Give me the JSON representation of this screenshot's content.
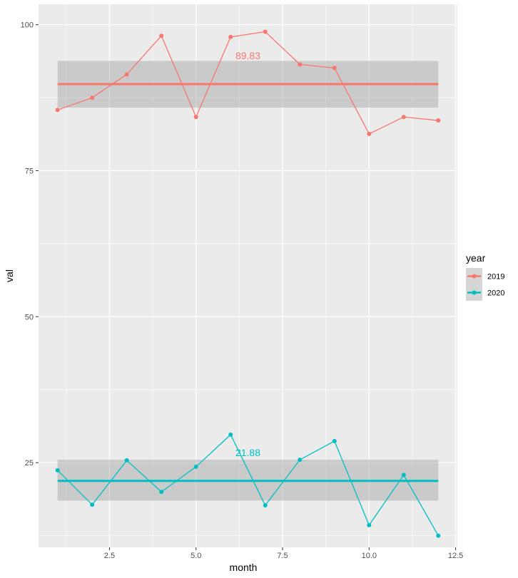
{
  "chart_data": {
    "type": "line",
    "xlabel": "month",
    "ylabel": "val",
    "xlim": [
      0.45,
      12.55
    ],
    "ylim": [
      10.5,
      103.5
    ],
    "x_ticks": [
      2.5,
      5.0,
      7.5,
      10.0,
      12.5
    ],
    "x_tick_labels": [
      "2.5",
      "5.0",
      "7.5",
      "10.0",
      "12.5"
    ],
    "y_ticks": [
      25,
      50,
      75,
      100
    ],
    "y_tick_labels": [
      "25",
      "50",
      "75",
      "100"
    ],
    "grid": true,
    "legend": {
      "title": "year",
      "position": "right"
    },
    "series": [
      {
        "name": "2019",
        "color": "#F8766D",
        "x": [
          1,
          2,
          3,
          4,
          5,
          6,
          7,
          8,
          9,
          10,
          11,
          12
        ],
        "values": [
          85.4,
          87.5,
          91.5,
          98.1,
          84.2,
          97.9,
          98.8,
          93.2,
          92.6,
          81.3,
          84.2,
          83.6
        ],
        "mean": 89.83,
        "mean_label": "89.83",
        "band": [
          85.8,
          93.8
        ]
      },
      {
        "name": "2020",
        "color": "#00BFC4",
        "x": [
          1,
          2,
          3,
          4,
          5,
          6,
          7,
          8,
          9,
          10,
          11,
          12
        ],
        "values": [
          23.7,
          17.8,
          25.4,
          20.0,
          24.3,
          29.8,
          17.7,
          25.5,
          28.7,
          14.3,
          22.9,
          12.5
        ],
        "mean": 21.88,
        "mean_label": "21.88",
        "band": [
          18.5,
          25.5
        ]
      }
    ]
  }
}
